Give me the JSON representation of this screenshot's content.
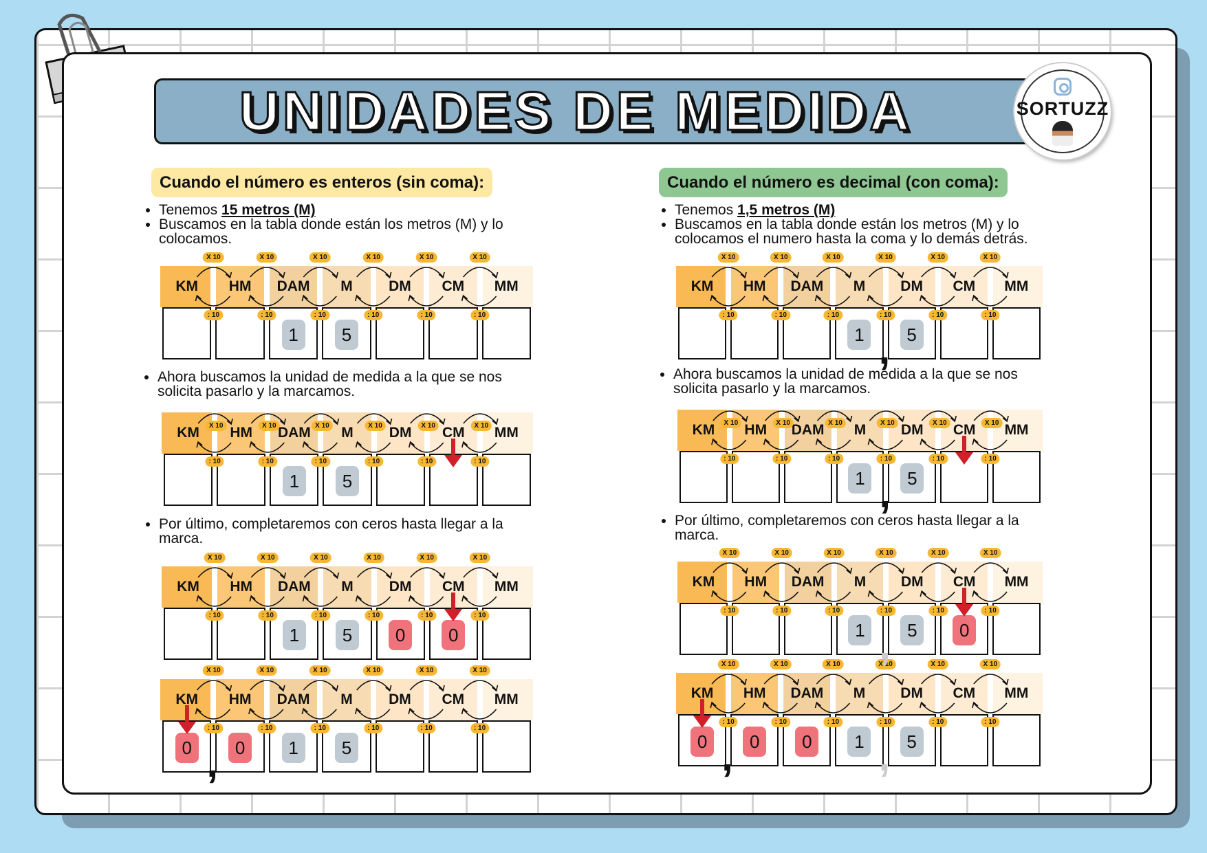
{
  "title": "UNIDADES DE MEDIDA",
  "logo": {
    "text": "SORTUZZ",
    "icon": "instagram-icon"
  },
  "units": [
    "KM",
    "HM",
    "DAM",
    "M",
    "DM",
    "CM",
    "MM"
  ],
  "multiply_label": "X 10",
  "divide_label": ": 10",
  "colors": {
    "background": "#aedcf3",
    "banner": "#8aafc6",
    "left_heading": "#fde9a3",
    "right_heading": "#8fc793",
    "unit_headers": [
      "#f9b955",
      "#fbc776",
      "#f3d19e",
      "#f7dbb2",
      "#fde5c5",
      "#fdebd3",
      "#fef2e1"
    ],
    "digit_chip": "#c0cad3",
    "zero_chip": "#f0737b",
    "arrow": "#d0202a"
  },
  "columns": [
    {
      "heading": "Cuando el número es enteros (sin coma):",
      "intro_prefix": "Tenemos ",
      "intro_bold": "15 metros (M)",
      "step1": "Buscamos en la tabla donde están los metros (M) y lo colocamos.",
      "step2": "Ahora buscamos la unidad de medida a la que se nos solicita pasarlo y la marcamos.",
      "step3": "Por último, completaremos con ceros hasta llegar a la marca.",
      "tables": [
        {
          "cells": [
            null,
            null,
            {
              "digit": "1",
              "chip": "gray"
            },
            {
              "digit": "5",
              "chip": "gray"
            },
            null,
            null,
            null
          ],
          "marked": null,
          "comma": null,
          "faded_comma": null
        },
        {
          "cells": [
            null,
            null,
            {
              "digit": "1",
              "chip": "gray"
            },
            {
              "digit": "5",
              "chip": "gray"
            },
            null,
            null,
            null
          ],
          "marked": "CM",
          "comma": null,
          "faded_comma": null
        },
        {
          "cells": [
            null,
            null,
            {
              "digit": "1",
              "chip": "gray"
            },
            {
              "digit": "5",
              "chip": "gray"
            },
            {
              "digit": "0",
              "chip": "red"
            },
            {
              "digit": "0",
              "chip": "red"
            },
            null
          ],
          "marked": "CM",
          "comma": null,
          "faded_comma": null
        },
        {
          "cells": [
            {
              "digit": "0",
              "chip": "red"
            },
            {
              "digit": "0",
              "chip": "red"
            },
            {
              "digit": "1",
              "chip": "gray"
            },
            {
              "digit": "5",
              "chip": "gray"
            },
            null,
            null,
            null
          ],
          "marked": "KM",
          "comma": "KM",
          "faded_comma": null
        }
      ]
    },
    {
      "heading": "Cuando el número es decimal (con coma):",
      "intro_prefix": "Tenemos ",
      "intro_bold": "1,5 metros (M)",
      "step1": "Buscamos en la tabla donde están los metros (M) y lo colocamos el numero hasta la coma y lo demás detrás.",
      "step2": "Ahora buscamos la unidad de medida a la que se nos solicita pasarlo y la marcamos.",
      "step3": "Por último, completaremos con ceros hasta llegar a la marca.",
      "tables": [
        {
          "cells": [
            null,
            null,
            null,
            {
              "digit": "1",
              "chip": "gray"
            },
            {
              "digit": "5",
              "chip": "gray"
            },
            null,
            null
          ],
          "marked": null,
          "comma": "M",
          "faded_comma": null
        },
        {
          "cells": [
            null,
            null,
            null,
            {
              "digit": "1",
              "chip": "gray"
            },
            {
              "digit": "5",
              "chip": "gray"
            },
            null,
            null
          ],
          "marked": "CM",
          "comma": "M",
          "faded_comma": null
        },
        {
          "cells": [
            null,
            null,
            null,
            {
              "digit": "1",
              "chip": "gray"
            },
            {
              "digit": "5",
              "chip": "gray"
            },
            {
              "digit": "0",
              "chip": "red"
            },
            null
          ],
          "marked": "CM",
          "comma": null,
          "faded_comma": "M"
        },
        {
          "cells": [
            {
              "digit": "0",
              "chip": "red"
            },
            {
              "digit": "0",
              "chip": "red"
            },
            {
              "digit": "0",
              "chip": "red"
            },
            {
              "digit": "1",
              "chip": "gray"
            },
            {
              "digit": "5",
              "chip": "gray"
            },
            null,
            null
          ],
          "marked": "KM",
          "comma": "KM",
          "faded_comma": "M"
        }
      ]
    }
  ]
}
